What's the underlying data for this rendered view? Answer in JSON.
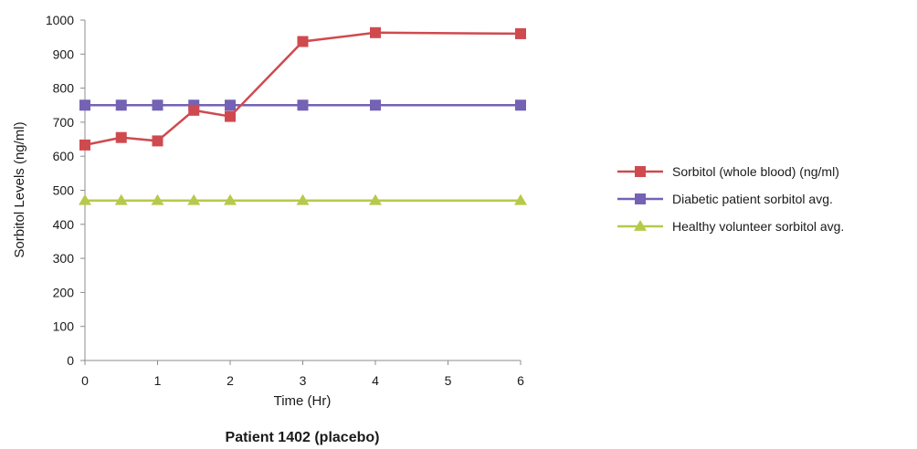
{
  "chart_data": {
    "type": "line",
    "title": "Patient 1402 (placebo)",
    "xlabel": "Time (Hr)",
    "ylabel": "Sorbitol Levels (ng/ml)",
    "xlim": [
      0,
      6
    ],
    "ylim": [
      0,
      1000
    ],
    "x_ticks": [
      "0",
      "1",
      "2",
      "3",
      "4",
      "5",
      "6"
    ],
    "y_ticks": [
      "0",
      "100",
      "200",
      "300",
      "400",
      "500",
      "600",
      "700",
      "800",
      "900",
      "1000"
    ],
    "grid": false,
    "legend_position": "right",
    "series": [
      {
        "name": "Sorbitol (whole blood) (ng/ml)",
        "color": "#cf4a4f",
        "marker": "square",
        "x": [
          0,
          0.5,
          1,
          1.5,
          2,
          3,
          4,
          6
        ],
        "y": [
          633,
          655,
          645,
          735,
          717,
          937,
          963,
          960
        ]
      },
      {
        "name": "Diabetic patient sorbitol avg.",
        "color": "#7462b4",
        "marker": "square",
        "x": [
          0,
          0.5,
          1,
          1.5,
          2,
          3,
          4,
          6
        ],
        "y": [
          750,
          750,
          750,
          750,
          750,
          750,
          750,
          750
        ]
      },
      {
        "name": "Healthy volunteer sorbitol avg.",
        "color": "#b7c94a",
        "marker": "triangle",
        "x": [
          0,
          0.5,
          1,
          1.5,
          2,
          3,
          4,
          6
        ],
        "y": [
          470,
          470,
          470,
          470,
          470,
          470,
          470,
          470
        ]
      }
    ]
  }
}
